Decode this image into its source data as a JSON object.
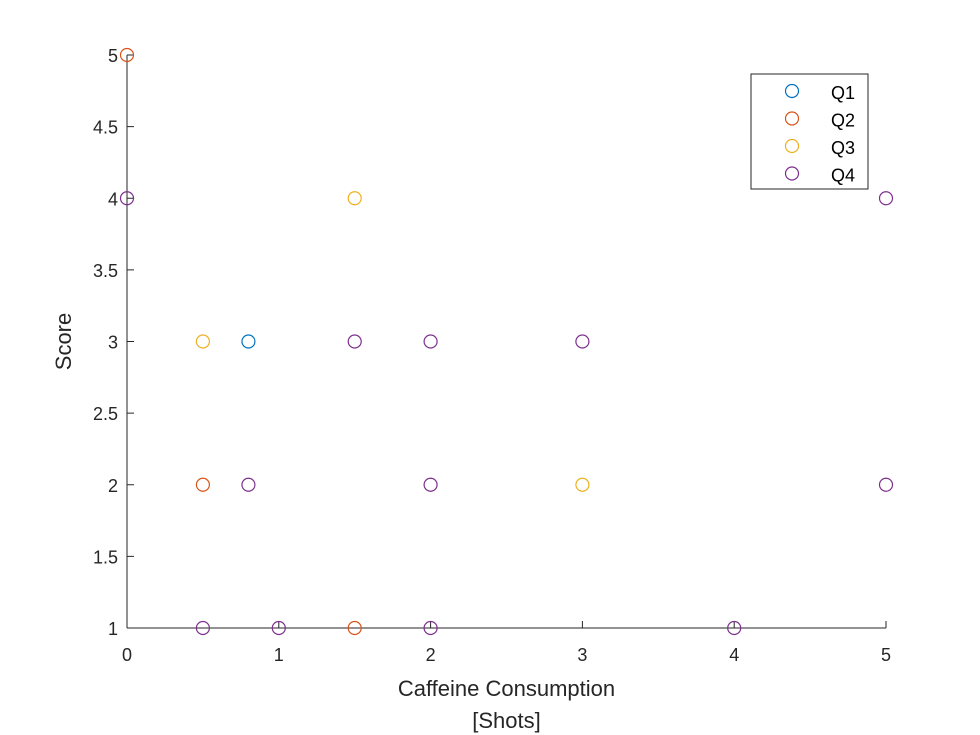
{
  "chart_data": {
    "type": "scatter",
    "title": "",
    "xlabel_lines": [
      "Caffeine Consumption",
      "[Shots]"
    ],
    "ylabel": "Score",
    "xlim": [
      0,
      5
    ],
    "ylim": [
      1,
      5
    ],
    "xticks": [
      "0",
      "1",
      "2",
      "3",
      "4",
      "5"
    ],
    "yticks": [
      "1",
      "1.5",
      "2",
      "2.5",
      "3",
      "3.5",
      "4",
      "4.5",
      "5"
    ],
    "grid": false,
    "legend_position": "top-right",
    "series": [
      {
        "name": "Q1",
        "color": "#0072BD",
        "points": [
          [
            0.8,
            3
          ]
        ]
      },
      {
        "name": "Q2",
        "color": "#D95319",
        "points": [
          [
            0,
            5
          ],
          [
            0.5,
            2
          ],
          [
            1.5,
            1
          ]
        ]
      },
      {
        "name": "Q3",
        "color": "#EDB120",
        "points": [
          [
            0.5,
            3
          ],
          [
            1.5,
            4
          ],
          [
            3,
            2
          ]
        ]
      },
      {
        "name": "Q4",
        "color": "#7E2F8E",
        "points": [
          [
            0,
            4
          ],
          [
            0.5,
            1
          ],
          [
            0.8,
            2
          ],
          [
            1,
            1
          ],
          [
            1.5,
            3
          ],
          [
            2,
            3
          ],
          [
            2,
            2
          ],
          [
            2,
            1
          ],
          [
            3,
            3
          ],
          [
            4,
            1
          ],
          [
            5,
            4
          ],
          [
            5,
            2
          ]
        ]
      }
    ]
  }
}
